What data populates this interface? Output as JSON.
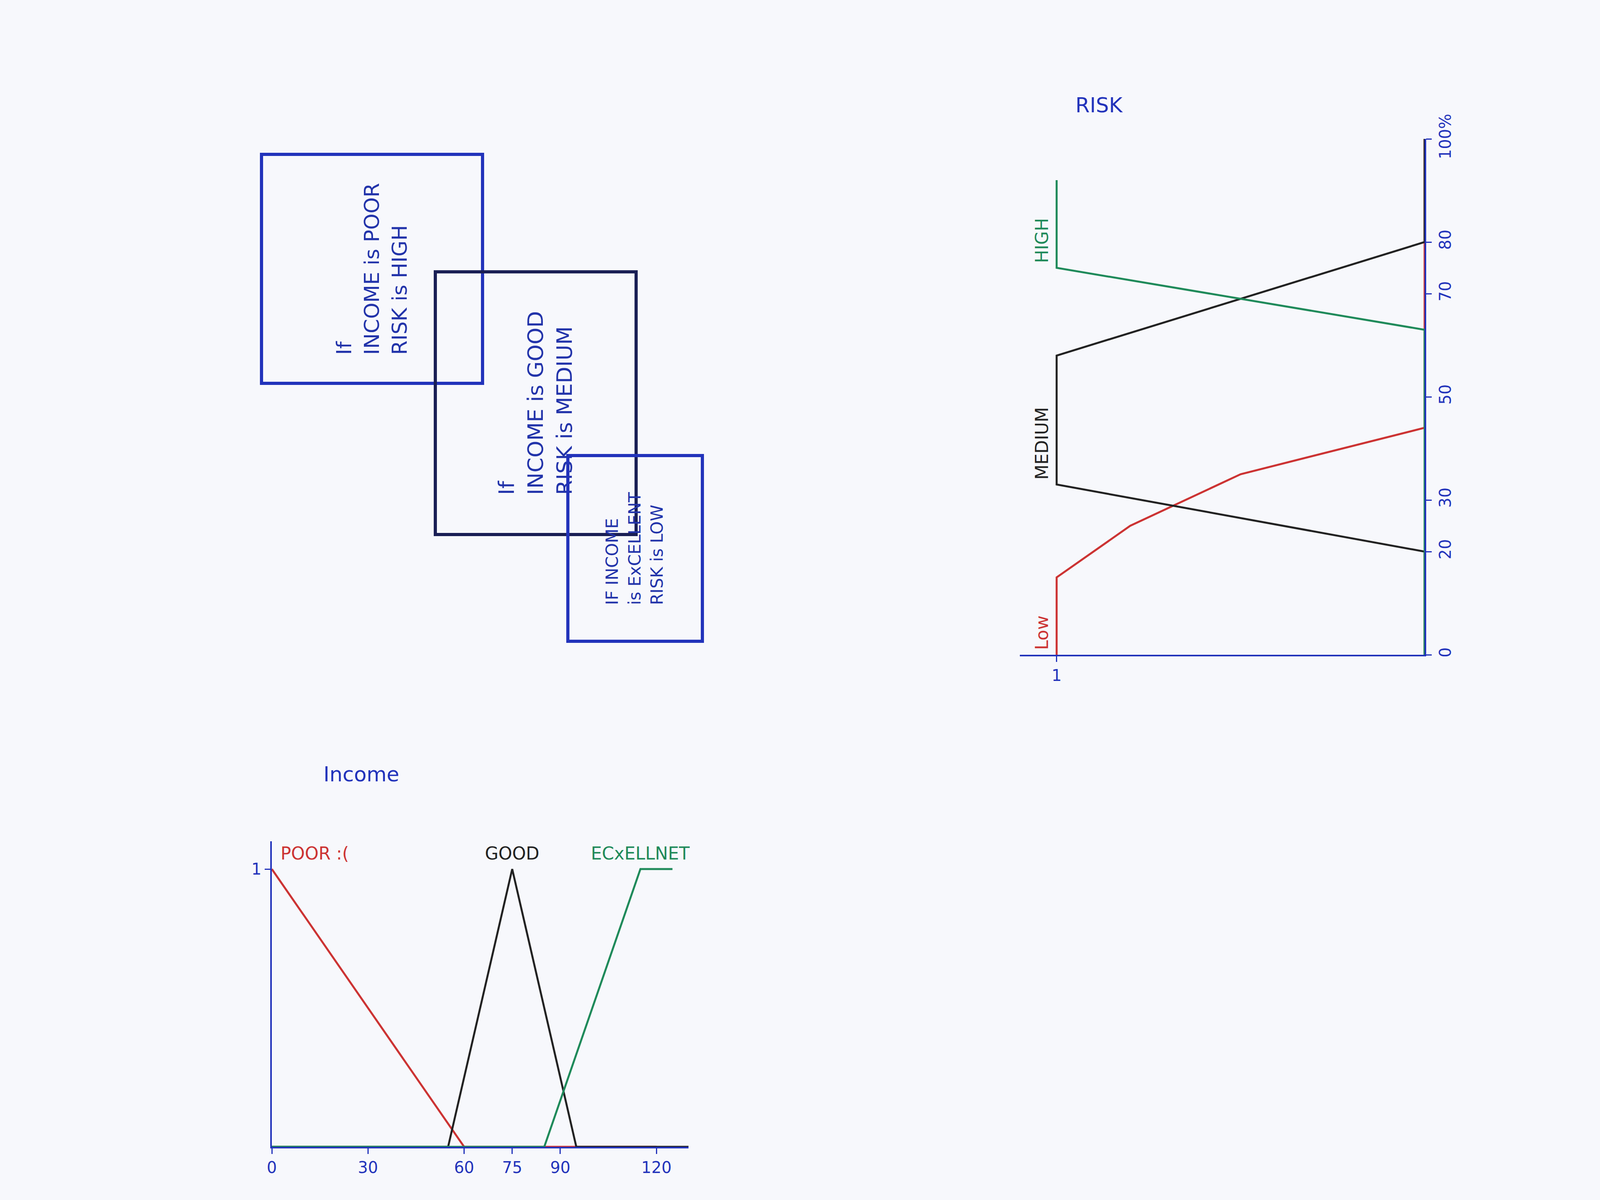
{
  "chart_data": [
    {
      "type": "line",
      "title": "Income",
      "xlim": [
        0,
        130
      ],
      "xticks": [
        0,
        30,
        60,
        75,
        90,
        120
      ],
      "ylim": [
        0,
        1.1
      ],
      "yticks": [
        1
      ],
      "series": [
        {
          "name": "POOR :(",
          "color": "#cc3333",
          "x": [
            0,
            60,
            120
          ],
          "values": [
            1,
            0,
            0
          ]
        },
        {
          "name": "GOOD",
          "color": "#222222",
          "x": [
            0,
            55,
            75,
            95,
            130
          ],
          "values": [
            0,
            0,
            1,
            0,
            0
          ]
        },
        {
          "name": "ECxELLNET",
          "color": "#1f8a5a",
          "x": [
            0,
            85,
            115,
            125
          ],
          "values": [
            0,
            0,
            1,
            1
          ]
        }
      ]
    },
    {
      "type": "line",
      "title": "RISK",
      "orientation": "horizontal",
      "xlim": [
        0,
        100
      ],
      "xticks": [
        0,
        20,
        30,
        50,
        70,
        80,
        {
          "value": 100,
          "label": "100%"
        }
      ],
      "ylim": [
        0,
        1.1
      ],
      "yticks": [
        1
      ],
      "series": [
        {
          "name": "Low",
          "color": "#cc3333",
          "x": [
            0,
            15,
            25,
            35,
            44,
            100
          ],
          "values": [
            1,
            1,
            0.8,
            0.5,
            0,
            0
          ]
        },
        {
          "name": "MEDIUM",
          "color": "#222222",
          "x": [
            0,
            20,
            33,
            58,
            80,
            100
          ],
          "values": [
            0,
            0,
            1,
            1,
            0,
            0
          ]
        },
        {
          "name": "HIGH",
          "color": "#1f8a5a",
          "x": [
            0,
            63,
            75,
            92
          ],
          "values": [
            0,
            0,
            1,
            1
          ]
        }
      ]
    }
  ],
  "rules": [
    {
      "lines": [
        "If",
        "INCOME is POOR",
        "RISK is HIGH"
      ]
    },
    {
      "lines": [
        "If",
        "INCOME is GOOD",
        "RISK is MEDIUM"
      ]
    },
    {
      "lines": [
        "IF INCOME",
        "is ExCELLENT",
        "RISK is LOW"
      ]
    }
  ]
}
